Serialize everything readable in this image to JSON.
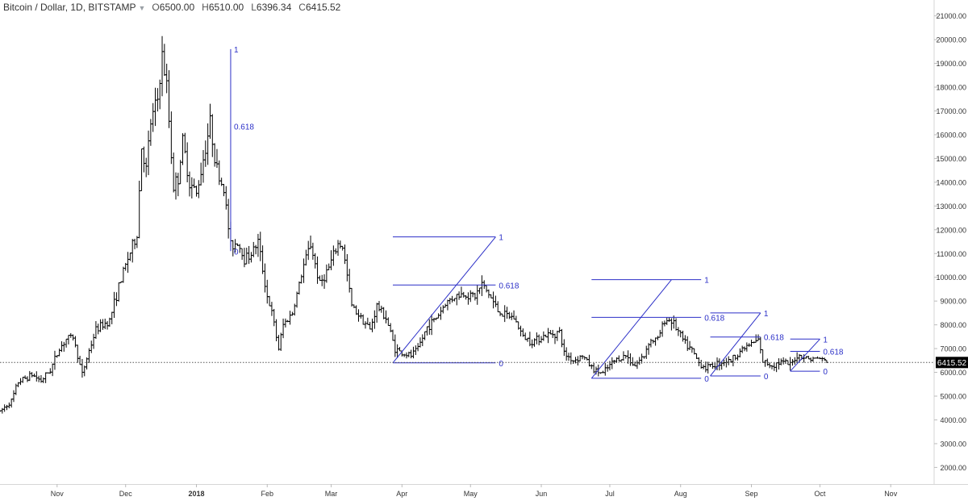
{
  "header": {
    "symbol": "Bitcoin / Dollar, 1D, BITSTAMP",
    "open_key": "O",
    "open": "6500.00",
    "high_key": "H",
    "high": "6510.00",
    "low_key": "L",
    "low": "6396.34",
    "close_key": "C",
    "close": "6415.52"
  },
  "chart_data": {
    "type": "ohlc",
    "title": "Bitcoin / Dollar, 1D, BITSTAMP",
    "symbol": "Bitcoin / Dollar",
    "interval": "1D",
    "exchange": "BITSTAMP",
    "ylim": [
      1300,
      21600
    ],
    "y_ticks": [
      2000,
      3000,
      4000,
      5000,
      6000,
      7000,
      8000,
      9000,
      10000,
      11000,
      12000,
      13000,
      14000,
      15000,
      16000,
      17000,
      18000,
      19000,
      20000,
      21000
    ],
    "y_tick_labels": [
      "2000.00",
      "3000.00",
      "4000.00",
      "5000.00",
      "6000.00",
      "7000.00",
      "8000.00",
      "9000.00",
      "10000.00",
      "11000.00",
      "12000.00",
      "13000.00",
      "14000.00",
      "15000.00",
      "16000.00",
      "17000.00",
      "18000.00",
      "19000.00",
      "20000.00",
      "21000.00"
    ],
    "xlim": [
      "2017-10-07",
      "2018-11-20"
    ],
    "x_ticks": [
      {
        "label": "Nov",
        "date": "2017-11-01",
        "bold": false
      },
      {
        "label": "Dec",
        "date": "2017-12-01",
        "bold": false
      },
      {
        "label": "2018",
        "date": "2018-01-01",
        "bold": true
      },
      {
        "label": "Feb",
        "date": "2018-02-01",
        "bold": false
      },
      {
        "label": "Mar",
        "date": "2018-03-01",
        "bold": false
      },
      {
        "label": "Apr",
        "date": "2018-04-01",
        "bold": false
      },
      {
        "label": "May",
        "date": "2018-05-01",
        "bold": false
      },
      {
        "label": "Jun",
        "date": "2018-06-01",
        "bold": false
      },
      {
        "label": "Jul",
        "date": "2018-07-01",
        "bold": false
      },
      {
        "label": "Aug",
        "date": "2018-08-01",
        "bold": false
      },
      {
        "label": "Sep",
        "date": "2018-09-01",
        "bold": false
      },
      {
        "label": "Oct",
        "date": "2018-10-01",
        "bold": false
      },
      {
        "label": "Nov",
        "date": "2018-11-01",
        "bold": false
      }
    ],
    "last_price": 6415.52,
    "last_price_label": "6415.52",
    "price_path": [
      [
        "2017-10-07",
        4350
      ],
      [
        "2017-10-12",
        4800
      ],
      [
        "2017-10-15",
        5600
      ],
      [
        "2017-10-21",
        5900
      ],
      [
        "2017-10-25",
        5650
      ],
      [
        "2017-10-29",
        6100
      ],
      [
        "2017-11-02",
        7000
      ],
      [
        "2017-11-05",
        7400
      ],
      [
        "2017-11-08",
        7500
      ],
      [
        "2017-11-12",
        5900
      ],
      [
        "2017-11-14",
        6600
      ],
      [
        "2017-11-18",
        7800
      ],
      [
        "2017-11-24",
        8200
      ],
      [
        "2017-11-28",
        9600
      ],
      [
        "2017-12-02",
        10800
      ],
      [
        "2017-12-06",
        11800
      ],
      [
        "2017-12-08",
        15500
      ],
      [
        "2017-12-10",
        14500
      ],
      [
        "2017-12-12",
        16500
      ],
      [
        "2017-12-15",
        17500
      ],
      [
        "2017-12-17",
        19300
      ],
      [
        "2017-12-19",
        18000
      ],
      [
        "2017-12-22",
        13800
      ],
      [
        "2017-12-24",
        14200
      ],
      [
        "2017-12-26",
        15700
      ],
      [
        "2017-12-29",
        14000
      ],
      [
        "2018-01-01",
        13500
      ],
      [
        "2018-01-04",
        15000
      ],
      [
        "2018-01-07",
        16500
      ],
      [
        "2018-01-10",
        14500
      ],
      [
        "2018-01-13",
        13700
      ],
      [
        "2018-01-16",
        11300
      ],
      [
        "2018-01-19",
        11500
      ],
      [
        "2018-01-22",
        10800
      ],
      [
        "2018-01-25",
        11000
      ],
      [
        "2018-01-28",
        11500
      ],
      [
        "2018-02-01",
        9200
      ],
      [
        "2018-02-03",
        8500
      ],
      [
        "2018-02-06",
        7000
      ],
      [
        "2018-02-08",
        8000
      ],
      [
        "2018-02-12",
        8500
      ],
      [
        "2018-02-17",
        10500
      ],
      [
        "2018-02-20",
        11400
      ],
      [
        "2018-02-24",
        9700
      ],
      [
        "2018-02-28",
        10400
      ],
      [
        "2018-03-04",
        11400
      ],
      [
        "2018-03-06",
        11300
      ],
      [
        "2018-03-10",
        8800
      ],
      [
        "2018-03-15",
        8200
      ],
      [
        "2018-03-18",
        7800
      ],
      [
        "2018-03-21",
        8800
      ],
      [
        "2018-03-25",
        8300
      ],
      [
        "2018-03-29",
        7000
      ],
      [
        "2018-04-01",
        6800
      ],
      [
        "2018-04-05",
        6700
      ],
      [
        "2018-04-08",
        7000
      ],
      [
        "2018-04-12",
        7900
      ],
      [
        "2018-04-16",
        8300
      ],
      [
        "2018-04-20",
        8900
      ],
      [
        "2018-04-24",
        9200
      ],
      [
        "2018-04-28",
        9300
      ],
      [
        "2018-05-03",
        9200
      ],
      [
        "2018-05-06",
        9700
      ],
      [
        "2018-05-09",
        9300
      ],
      [
        "2018-05-13",
        8600
      ],
      [
        "2018-05-16",
        8400
      ],
      [
        "2018-05-20",
        8300
      ],
      [
        "2018-05-24",
        7500
      ],
      [
        "2018-05-28",
        7300
      ],
      [
        "2018-06-01",
        7500
      ],
      [
        "2018-06-05",
        7600
      ],
      [
        "2018-06-09",
        7700
      ],
      [
        "2018-06-11",
        6800
      ],
      [
        "2018-06-15",
        6500
      ],
      [
        "2018-06-19",
        6700
      ],
      [
        "2018-06-24",
        6100
      ],
      [
        "2018-06-28",
        5950
      ],
      [
        "2018-07-01",
        6300
      ],
      [
        "2018-07-04",
        6550
      ],
      [
        "2018-07-08",
        6700
      ],
      [
        "2018-07-12",
        6300
      ],
      [
        "2018-07-16",
        6700
      ],
      [
        "2018-07-18",
        7300
      ],
      [
        "2018-07-22",
        7400
      ],
      [
        "2018-07-25",
        8200
      ],
      [
        "2018-07-28",
        8200
      ],
      [
        "2018-07-31",
        7700
      ],
      [
        "2018-08-03",
        7200
      ],
      [
        "2018-08-06",
        6900
      ],
      [
        "2018-08-09",
        6400
      ],
      [
        "2018-08-12",
        6200
      ],
      [
        "2018-08-15",
        6300
      ],
      [
        "2018-08-19",
        6450
      ],
      [
        "2018-08-23",
        6500
      ],
      [
        "2018-08-27",
        6900
      ],
      [
        "2018-08-30",
        7100
      ],
      [
        "2018-09-04",
        7350
      ],
      [
        "2018-09-06",
        6450
      ],
      [
        "2018-09-10",
        6300
      ],
      [
        "2018-09-14",
        6450
      ],
      [
        "2018-09-18",
        6300
      ],
      [
        "2018-09-21",
        6700
      ],
      [
        "2018-09-24",
        6650
      ],
      [
        "2018-09-27",
        6550
      ],
      [
        "2018-10-01",
        6600
      ],
      [
        "2018-10-04",
        6415
      ]
    ],
    "fib_drawings": [
      {
        "name": "fib-dec-jan",
        "p1": [
          "2018-01-16",
          19600
        ],
        "p2": [
          "2018-01-16",
          11100
        ],
        "levels": [
          {
            "ratio": 1,
            "label": "1"
          },
          {
            "ratio": 0.618,
            "label": "0.618"
          },
          {
            "ratio": 0,
            "label": "0"
          }
        ]
      },
      {
        "name": "fib-apr-may",
        "p1": [
          "2018-03-28",
          6400
        ],
        "p2": [
          "2018-05-12",
          11700
        ],
        "ext_end": "2018-05-12",
        "levels": [
          {
            "ratio": 1,
            "label": "1"
          },
          {
            "ratio": 0.618,
            "label": "0.618"
          },
          {
            "ratio": 0,
            "label": "0"
          }
        ]
      },
      {
        "name": "fib-jun-jul",
        "p1": [
          "2018-06-23",
          5750
        ],
        "p2": [
          "2018-07-28",
          9900
        ],
        "ext_end": "2018-08-10",
        "levels": [
          {
            "ratio": 1,
            "label": "1"
          },
          {
            "ratio": 0.618,
            "label": "0.618"
          },
          {
            "ratio": 0,
            "label": "0"
          }
        ]
      },
      {
        "name": "fib-aug-sep",
        "p1": [
          "2018-08-14",
          5850
        ],
        "p2": [
          "2018-09-05",
          8500
        ],
        "ext_end": "2018-09-05",
        "levels": [
          {
            "ratio": 1,
            "label": "1"
          },
          {
            "ratio": 0.618,
            "label": "0.618"
          },
          {
            "ratio": 0,
            "label": "0"
          }
        ]
      },
      {
        "name": "fib-sep-oct",
        "p1": [
          "2018-09-18",
          6050
        ],
        "p2": [
          "2018-10-01",
          7400
        ],
        "ext_end": "2018-10-01",
        "levels": [
          {
            "ratio": 1,
            "label": "1"
          },
          {
            "ratio": 0.618,
            "label": "0.618"
          },
          {
            "ratio": 0,
            "label": "0"
          }
        ]
      }
    ]
  },
  "colors": {
    "bars": "#000000",
    "drawings": "#2b2fc7",
    "axis_text": "#333333",
    "grid_line": "#ececec",
    "price_label_bg": "#000000",
    "price_label_text": "#ffffff"
  }
}
